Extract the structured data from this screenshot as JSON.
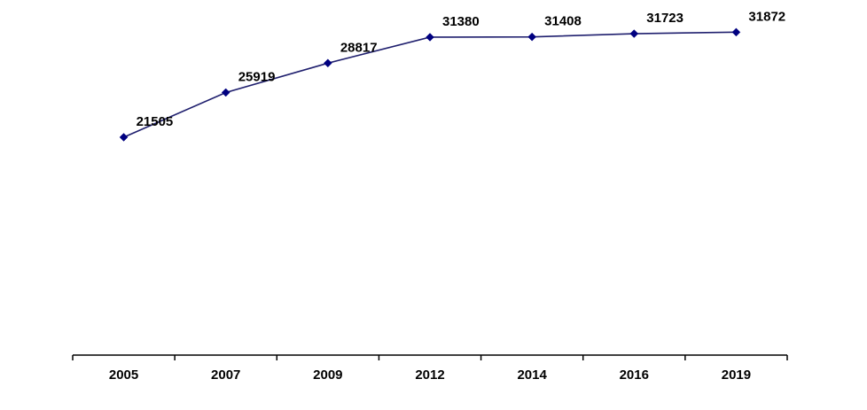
{
  "chart_data": {
    "type": "line",
    "categories": [
      "2005",
      "2007",
      "2009",
      "2012",
      "2014",
      "2016",
      "2019"
    ],
    "values": [
      21505,
      25919,
      28817,
      31380,
      31408,
      31723,
      31872
    ],
    "data_labels": [
      "21505",
      "25919",
      "28817",
      "31380",
      "31408",
      "31723",
      "31872"
    ],
    "title": "",
    "xlabel": "",
    "ylabel": "",
    "ylim": [
      0,
      34000
    ],
    "grid": false,
    "legend": "none",
    "y_axis_visible": false,
    "colors": {
      "line": "#1f1f6e",
      "marker": "#000080",
      "axis": "#000000",
      "text": "#000000"
    },
    "marker": "diamond"
  }
}
